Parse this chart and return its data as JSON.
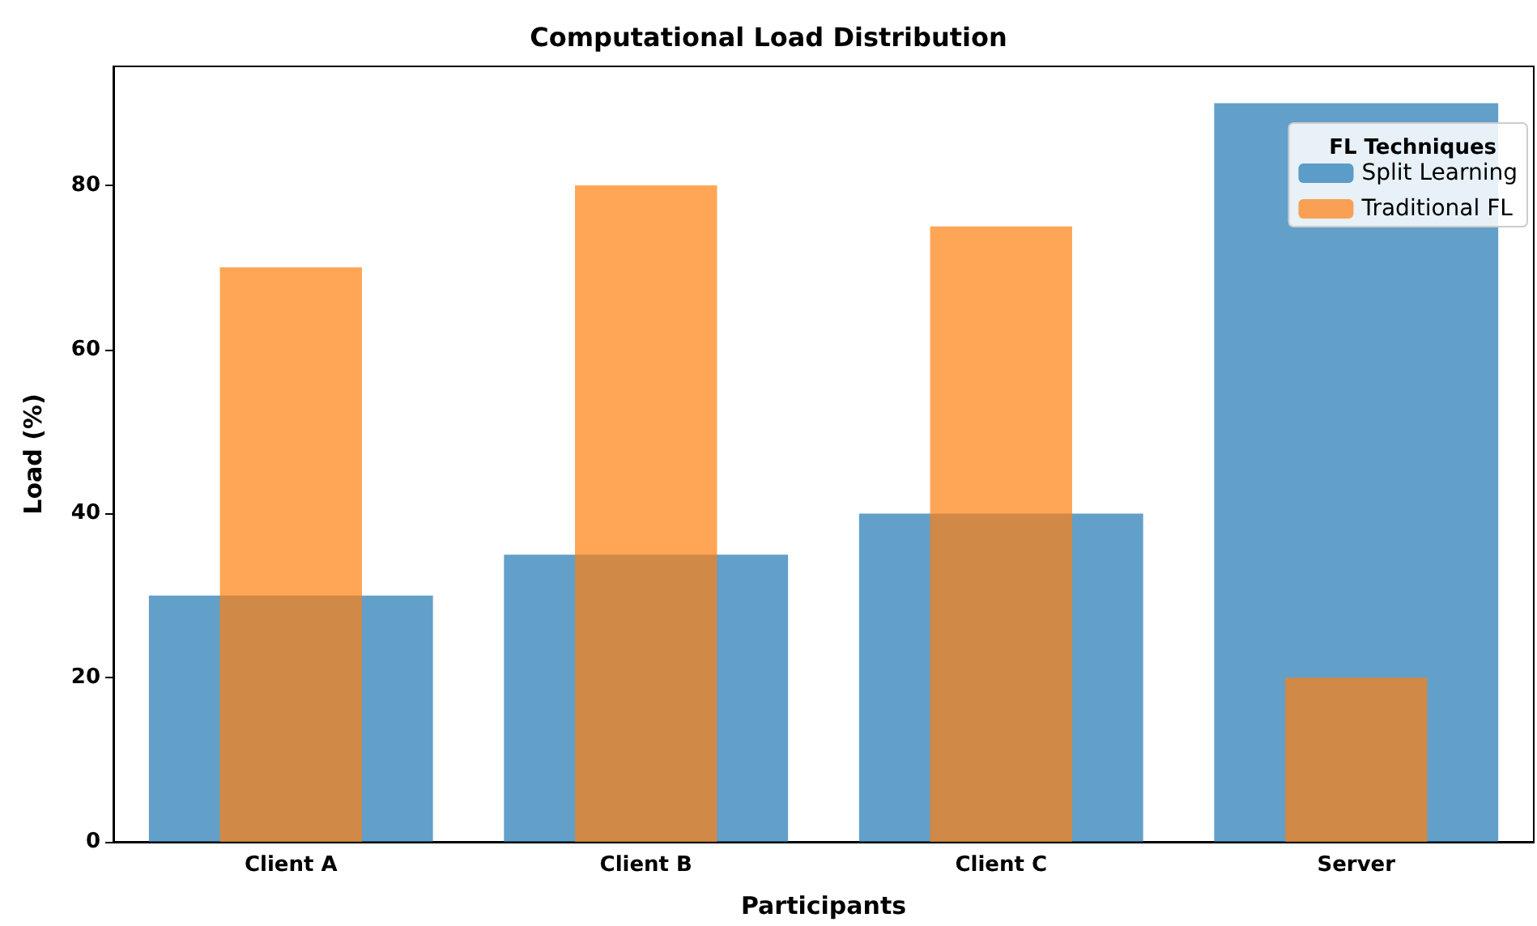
{
  "chart_data": {
    "type": "bar",
    "title": "Computational Load Distribution",
    "xlabel": "Participants",
    "ylabel": "Load (%)",
    "legend_title": "FL Techniques",
    "categories": [
      "Client A",
      "Client B",
      "Client C",
      "Server"
    ],
    "series": [
      {
        "name": "Split Learning",
        "color": "#1f77b4",
        "values": [
          30,
          35,
          40,
          90
        ]
      },
      {
        "name": "Traditional FL",
        "color": "#ff7f0e",
        "values": [
          70,
          80,
          75,
          20
        ]
      }
    ],
    "ylim": [
      0,
      94.5
    ],
    "yticks": [
      0,
      20,
      40,
      60,
      80
    ],
    "grid": false,
    "legend": "top right"
  }
}
